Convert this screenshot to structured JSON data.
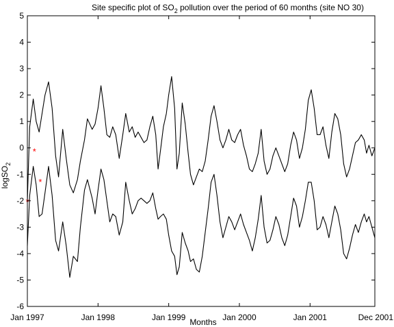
{
  "chart_data": {
    "type": "line",
    "title_parts": {
      "pre": "Site specific plot of SO",
      "sub": "2",
      "post": " pollution over the period of 60 months (site NO 30)"
    },
    "xlabel": "Months",
    "ylabel_parts": {
      "pre": "logSO",
      "sub": "2"
    },
    "xlim": [
      1,
      60
    ],
    "ylim": [
      -6,
      5
    ],
    "grid": false,
    "x_ticks": [
      {
        "month": 1,
        "label": "Jan 1997"
      },
      {
        "month": 13,
        "label": "Jan 1998"
      },
      {
        "month": 25,
        "label": "Jan 1999"
      },
      {
        "month": 37,
        "label": "Jan 2000"
      },
      {
        "month": 49,
        "label": "Jan 2001"
      },
      {
        "month": 60,
        "label": "Dec 2001"
      }
    ],
    "y_ticks": [
      -6,
      -5,
      -4,
      -3,
      -2,
      -1,
      0,
      1,
      2,
      3,
      4,
      5
    ],
    "series": [
      {
        "color": "#000000",
        "points": [
          [
            1,
            -2.0
          ],
          [
            1.4,
            0.8
          ],
          [
            2,
            1.85
          ],
          [
            2.5,
            1.0
          ],
          [
            3,
            0.6
          ],
          [
            3.5,
            1.3
          ],
          [
            4,
            2.0
          ],
          [
            4.6,
            2.5
          ],
          [
            5.2,
            1.5
          ],
          [
            5.8,
            -0.3
          ],
          [
            6.3,
            -1.1
          ],
          [
            7,
            0.7
          ],
          [
            7.6,
            -0.4
          ],
          [
            8.2,
            -1.4
          ],
          [
            8.8,
            -1.7
          ],
          [
            9.5,
            -1.2
          ],
          [
            10,
            -0.5
          ],
          [
            10.7,
            0.3
          ],
          [
            11.2,
            1.1
          ],
          [
            12,
            0.7
          ],
          [
            12.5,
            0.9
          ],
          [
            13,
            1.5
          ],
          [
            13.5,
            2.35
          ],
          [
            14,
            1.5
          ],
          [
            14.5,
            0.5
          ],
          [
            15,
            0.4
          ],
          [
            15.5,
            0.8
          ],
          [
            16,
            0.5
          ],
          [
            16.6,
            -0.4
          ],
          [
            17.2,
            0.5
          ],
          [
            17.7,
            1.3
          ],
          [
            18.3,
            0.6
          ],
          [
            18.8,
            0.8
          ],
          [
            19.3,
            0.4
          ],
          [
            19.8,
            0.6
          ],
          [
            20.3,
            0.4
          ],
          [
            20.8,
            0.2
          ],
          [
            21.3,
            0.3
          ],
          [
            21.8,
            0.8
          ],
          [
            22.3,
            1.2
          ],
          [
            22.8,
            0.5
          ],
          [
            23.2,
            -0.8
          ],
          [
            23.6,
            -0.1
          ],
          [
            24.1,
            0.8
          ],
          [
            24.6,
            1.3
          ],
          [
            25,
            2.0
          ],
          [
            25.5,
            2.7
          ],
          [
            26,
            1.5
          ],
          [
            26.4,
            -0.8
          ],
          [
            26.8,
            -0.2
          ],
          [
            27.3,
            1.7
          ],
          [
            27.8,
            0.9
          ],
          [
            28.3,
            -0.2
          ],
          [
            28.7,
            -1.0
          ],
          [
            29.2,
            -1.4
          ],
          [
            29.7,
            -1.1
          ],
          [
            30.2,
            -0.8
          ],
          [
            30.7,
            -0.9
          ],
          [
            31.2,
            -0.5
          ],
          [
            31.7,
            0.3
          ],
          [
            32.2,
            1.2
          ],
          [
            32.7,
            1.6
          ],
          [
            33.2,
            1.0
          ],
          [
            33.7,
            0.3
          ],
          [
            34.2,
            0.0
          ],
          [
            34.7,
            0.3
          ],
          [
            35.2,
            0.7
          ],
          [
            35.7,
            0.3
          ],
          [
            36.2,
            0.2
          ],
          [
            36.7,
            0.5
          ],
          [
            37.2,
            0.7
          ],
          [
            37.7,
            0.1
          ],
          [
            38.2,
            -0.3
          ],
          [
            38.7,
            -0.8
          ],
          [
            39.2,
            -0.9
          ],
          [
            39.7,
            -0.6
          ],
          [
            40.2,
            -0.2
          ],
          [
            40.7,
            0.7
          ],
          [
            41.2,
            -0.5
          ],
          [
            41.7,
            -1.0
          ],
          [
            42.2,
            -0.8
          ],
          [
            42.7,
            -0.3
          ],
          [
            43.2,
            0.0
          ],
          [
            43.7,
            -0.3
          ],
          [
            44.2,
            -0.6
          ],
          [
            44.7,
            -0.9
          ],
          [
            45.2,
            -0.6
          ],
          [
            45.7,
            0.1
          ],
          [
            46.2,
            0.6
          ],
          [
            46.7,
            0.3
          ],
          [
            47.2,
            -0.4
          ],
          [
            47.7,
            0.0
          ],
          [
            48.2,
            0.7
          ],
          [
            48.7,
            1.8
          ],
          [
            49.2,
            2.2
          ],
          [
            49.7,
            1.5
          ],
          [
            50.2,
            0.5
          ],
          [
            50.7,
            0.5
          ],
          [
            51.2,
            0.8
          ],
          [
            51.7,
            0.1
          ],
          [
            52.2,
            -0.4
          ],
          [
            52.7,
            0.6
          ],
          [
            53.2,
            1.3
          ],
          [
            53.7,
            1.1
          ],
          [
            54.2,
            0.5
          ],
          [
            54.7,
            -0.6
          ],
          [
            55.2,
            -1.1
          ],
          [
            55.7,
            -0.8
          ],
          [
            56.2,
            -0.3
          ],
          [
            56.7,
            0.2
          ],
          [
            57.2,
            0.3
          ],
          [
            57.7,
            0.5
          ],
          [
            58.2,
            0.3
          ],
          [
            58.6,
            -0.2
          ],
          [
            59,
            0.1
          ],
          [
            59.5,
            -0.3
          ],
          [
            60,
            0.0
          ]
        ]
      },
      {
        "color": "#000000",
        "points": [
          [
            1,
            -3.7
          ],
          [
            1.4,
            -1.8
          ],
          [
            2,
            -0.7
          ],
          [
            2.5,
            -1.4
          ],
          [
            3,
            -2.6
          ],
          [
            3.5,
            -2.5
          ],
          [
            4,
            -1.7
          ],
          [
            4.6,
            -0.7
          ],
          [
            5.2,
            -1.8
          ],
          [
            5.8,
            -3.5
          ],
          [
            6.3,
            -3.9
          ],
          [
            7,
            -2.8
          ],
          [
            7.6,
            -3.7
          ],
          [
            8.2,
            -4.9
          ],
          [
            8.8,
            -4.1
          ],
          [
            9.5,
            -4.3
          ],
          [
            10,
            -3.0
          ],
          [
            10.7,
            -1.6
          ],
          [
            11.2,
            -1.2
          ],
          [
            12,
            -1.9
          ],
          [
            12.5,
            -2.5
          ],
          [
            13,
            -1.6
          ],
          [
            13.5,
            -0.8
          ],
          [
            14,
            -1.2
          ],
          [
            14.5,
            -2.0
          ],
          [
            15,
            -2.8
          ],
          [
            15.5,
            -2.5
          ],
          [
            16,
            -2.6
          ],
          [
            16.6,
            -3.3
          ],
          [
            17.2,
            -2.8
          ],
          [
            17.7,
            -1.3
          ],
          [
            18.3,
            -2.0
          ],
          [
            18.8,
            -2.5
          ],
          [
            19.3,
            -2.3
          ],
          [
            19.8,
            -2.0
          ],
          [
            20.3,
            -1.9
          ],
          [
            20.8,
            -2.0
          ],
          [
            21.3,
            -2.1
          ],
          [
            21.8,
            -2.0
          ],
          [
            22.3,
            -1.7
          ],
          [
            22.8,
            -2.3
          ],
          [
            23.2,
            -2.7
          ],
          [
            23.6,
            -2.6
          ],
          [
            24.1,
            -2.5
          ],
          [
            24.6,
            -2.7
          ],
          [
            25,
            -3.3
          ],
          [
            25.5,
            -3.9
          ],
          [
            26,
            -4.1
          ],
          [
            26.4,
            -4.8
          ],
          [
            26.8,
            -4.5
          ],
          [
            27.3,
            -3.2
          ],
          [
            27.8,
            -3.6
          ],
          [
            28.3,
            -3.9
          ],
          [
            28.7,
            -4.3
          ],
          [
            29.2,
            -4.2
          ],
          [
            29.7,
            -4.6
          ],
          [
            30.2,
            -4.7
          ],
          [
            30.7,
            -4.1
          ],
          [
            31.2,
            -3.2
          ],
          [
            31.7,
            -2.3
          ],
          [
            32.2,
            -1.3
          ],
          [
            32.7,
            -1.0
          ],
          [
            33.2,
            -1.8
          ],
          [
            33.7,
            -2.8
          ],
          [
            34.2,
            -3.4
          ],
          [
            34.7,
            -3.0
          ],
          [
            35.2,
            -2.6
          ],
          [
            35.7,
            -2.8
          ],
          [
            36.2,
            -3.1
          ],
          [
            36.7,
            -2.8
          ],
          [
            37.2,
            -2.5
          ],
          [
            37.7,
            -2.9
          ],
          [
            38.2,
            -3.2
          ],
          [
            38.7,
            -3.5
          ],
          [
            39.2,
            -3.9
          ],
          [
            39.7,
            -3.4
          ],
          [
            40.2,
            -2.7
          ],
          [
            40.7,
            -1.8
          ],
          [
            41.2,
            -3.0
          ],
          [
            41.7,
            -3.6
          ],
          [
            42.2,
            -3.5
          ],
          [
            42.7,
            -3.1
          ],
          [
            43.2,
            -2.6
          ],
          [
            43.7,
            -2.9
          ],
          [
            44.2,
            -3.4
          ],
          [
            44.7,
            -3.7
          ],
          [
            45.2,
            -3.3
          ],
          [
            45.7,
            -2.6
          ],
          [
            46.2,
            -1.9
          ],
          [
            46.7,
            -2.2
          ],
          [
            47.2,
            -3.0
          ],
          [
            47.7,
            -2.6
          ],
          [
            48.2,
            -2.0
          ],
          [
            48.7,
            -1.3
          ],
          [
            49.2,
            -1.3
          ],
          [
            49.7,
            -2.0
          ],
          [
            50.2,
            -3.1
          ],
          [
            50.7,
            -3.0
          ],
          [
            51.2,
            -2.6
          ],
          [
            51.7,
            -2.9
          ],
          [
            52.2,
            -3.4
          ],
          [
            52.7,
            -2.8
          ],
          [
            53.2,
            -2.2
          ],
          [
            53.7,
            -2.5
          ],
          [
            54.2,
            -3.1
          ],
          [
            54.7,
            -4.0
          ],
          [
            55.2,
            -4.2
          ],
          [
            55.7,
            -3.8
          ],
          [
            56.2,
            -3.3
          ],
          [
            56.7,
            -2.9
          ],
          [
            57.2,
            -3.2
          ],
          [
            57.7,
            -2.8
          ],
          [
            58.2,
            -2.5
          ],
          [
            58.6,
            -2.8
          ],
          [
            59,
            -2.6
          ],
          [
            59.5,
            -3.0
          ],
          [
            60,
            -3.4
          ]
        ]
      }
    ],
    "markers": {
      "symbol": "*",
      "color": "#ff0000",
      "points": [
        [
          1,
          -2.0
        ],
        [
          2.2,
          -0.1
        ],
        [
          3.2,
          -1.25
        ]
      ]
    }
  }
}
